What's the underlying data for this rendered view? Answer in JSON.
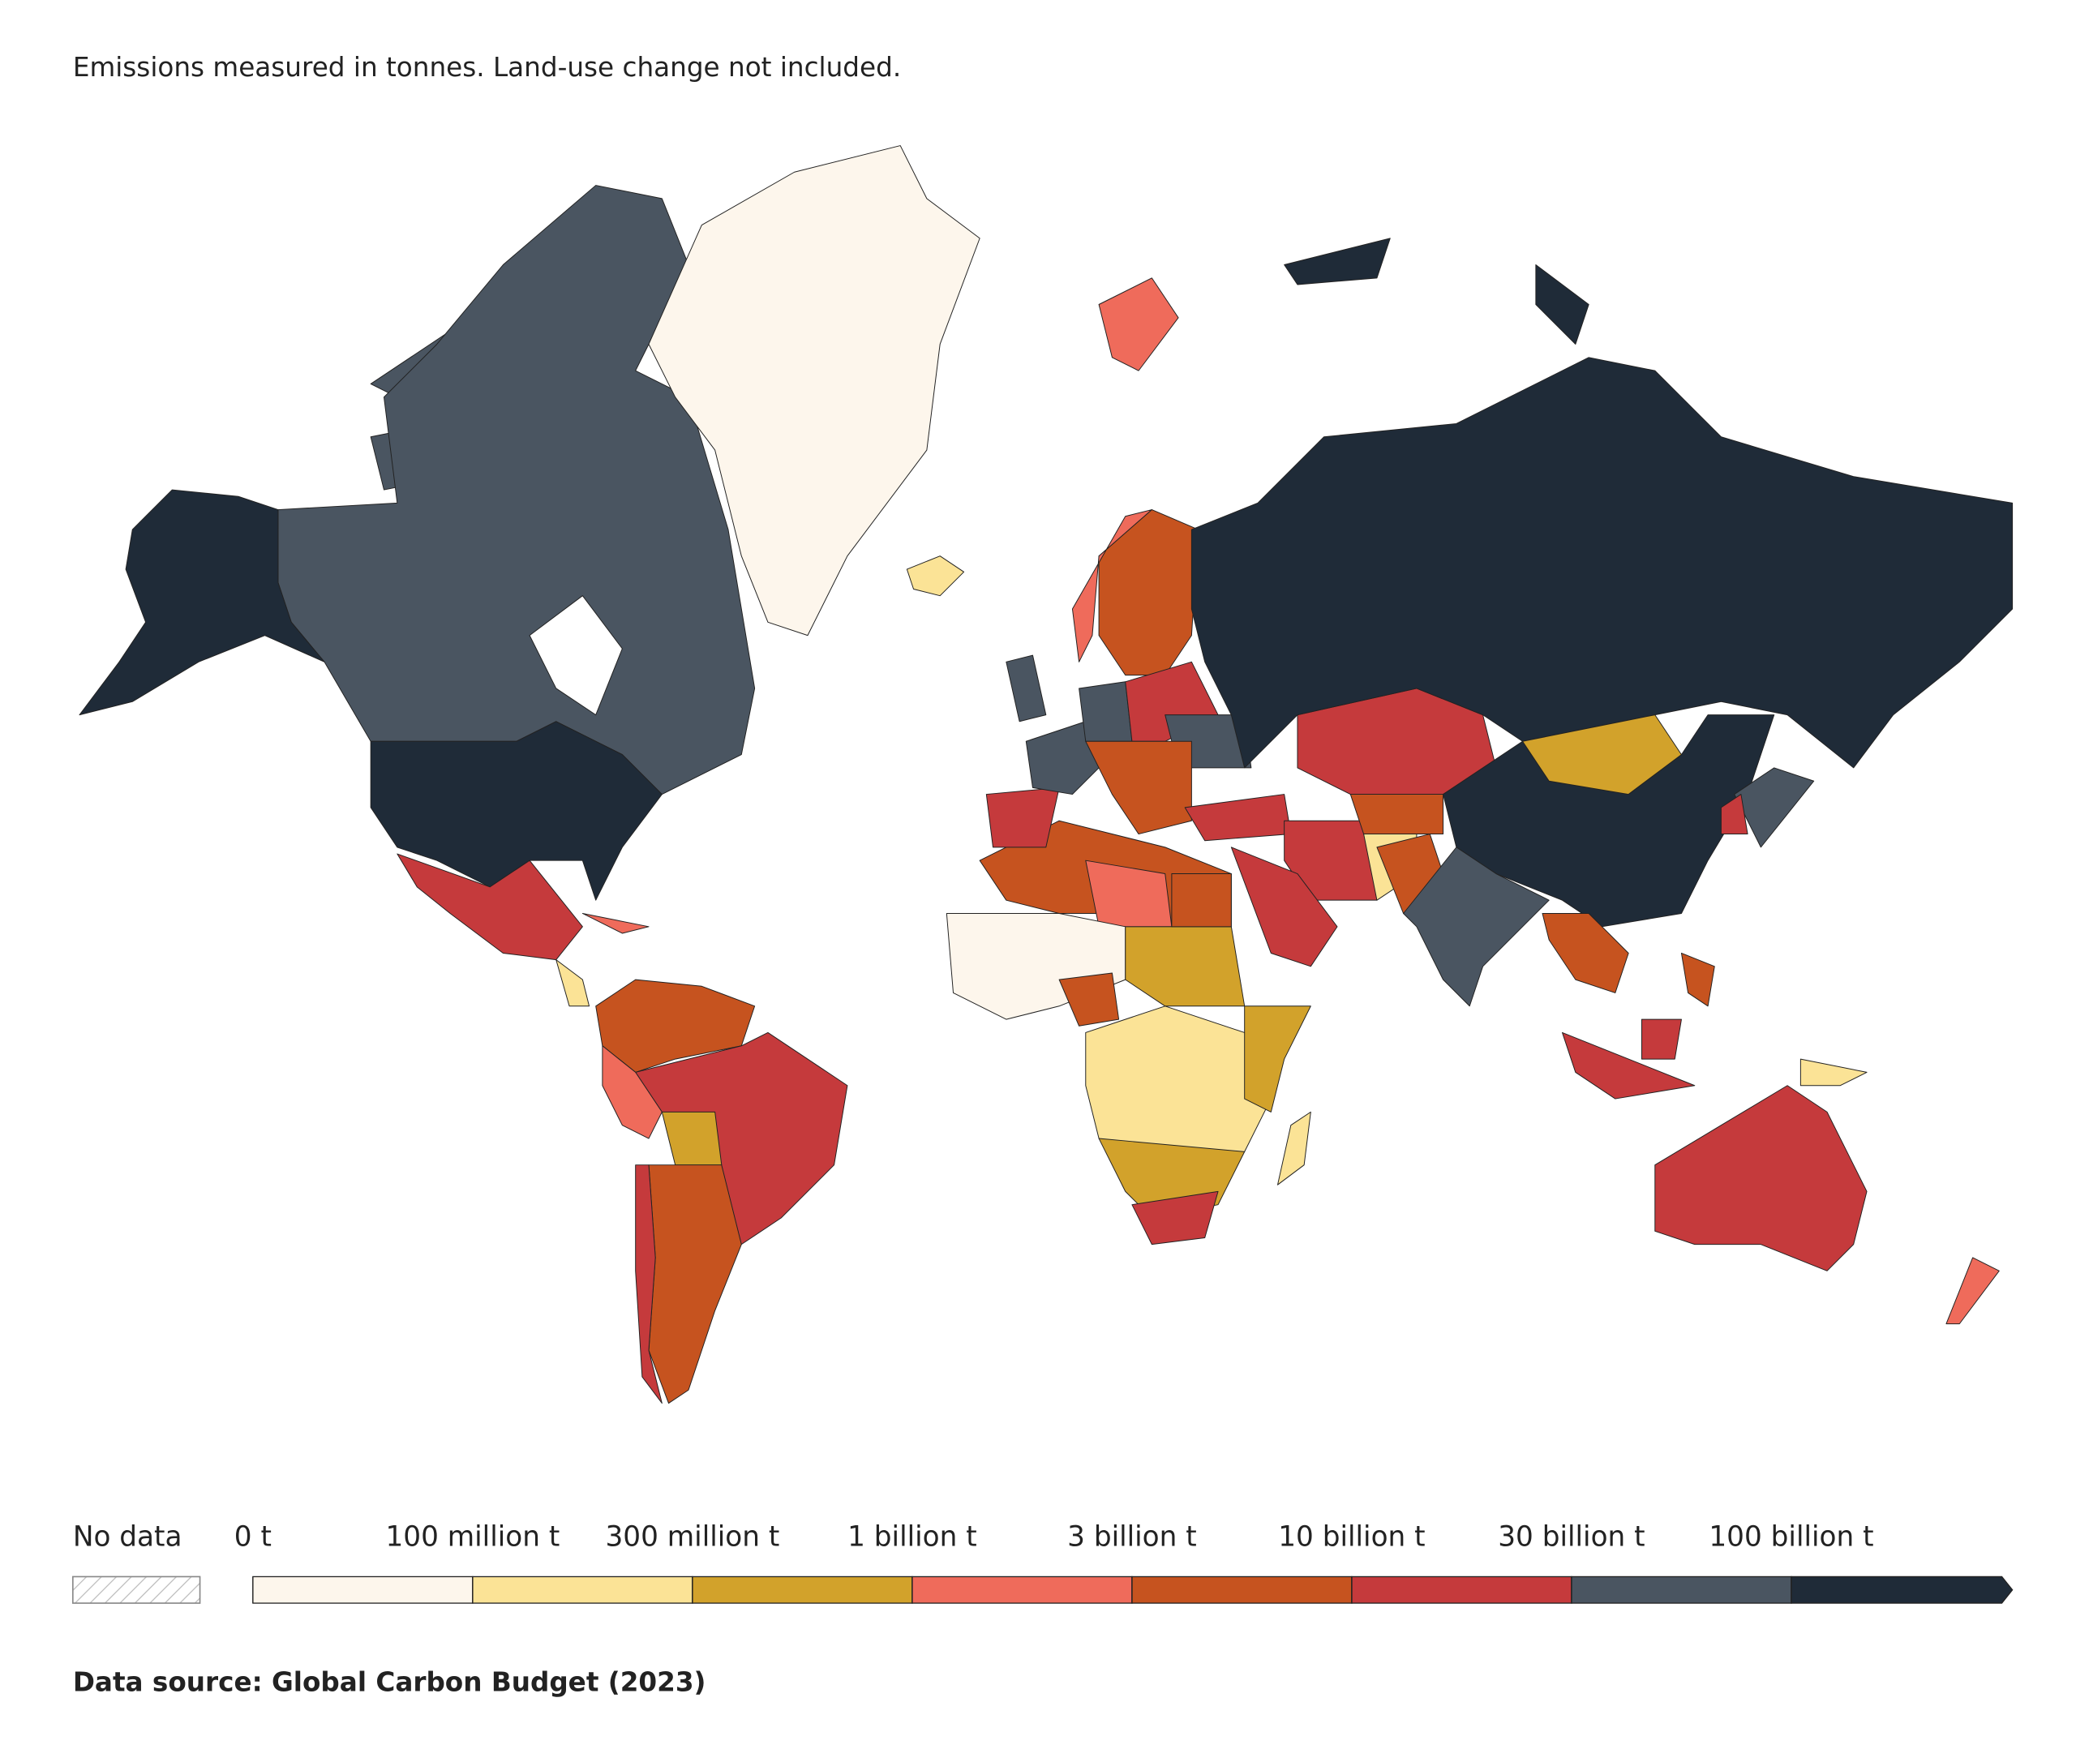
{
  "chart_data": {
    "type": "choropleth",
    "subtitle": "Emissions measured in tonnes. Land-use change not included.",
    "legend": {
      "no_data": "No data",
      "ticks": [
        {
          "value": 0,
          "label": "0 t"
        },
        {
          "value": 100000000,
          "label": "100 million t"
        },
        {
          "value": 300000000,
          "label": "300 million t"
        },
        {
          "value": 1000000000,
          "label": "1 billion t"
        },
        {
          "value": 3000000000,
          "label": "3 billion t"
        },
        {
          "value": 10000000000,
          "label": "10 billion t"
        },
        {
          "value": 30000000000,
          "label": "30 billion t"
        },
        {
          "value": 100000000000,
          "label": "100 billion t"
        }
      ],
      "colors": [
        "#fdf6ec",
        "#fbe396",
        "#d2a22b",
        "#ef6b5b",
        "#c6531f",
        "#c53a3c",
        "#4a5561",
        "#1f2b38"
      ]
    },
    "source": "Data source: Global Carbon Budget (2023)"
  }
}
